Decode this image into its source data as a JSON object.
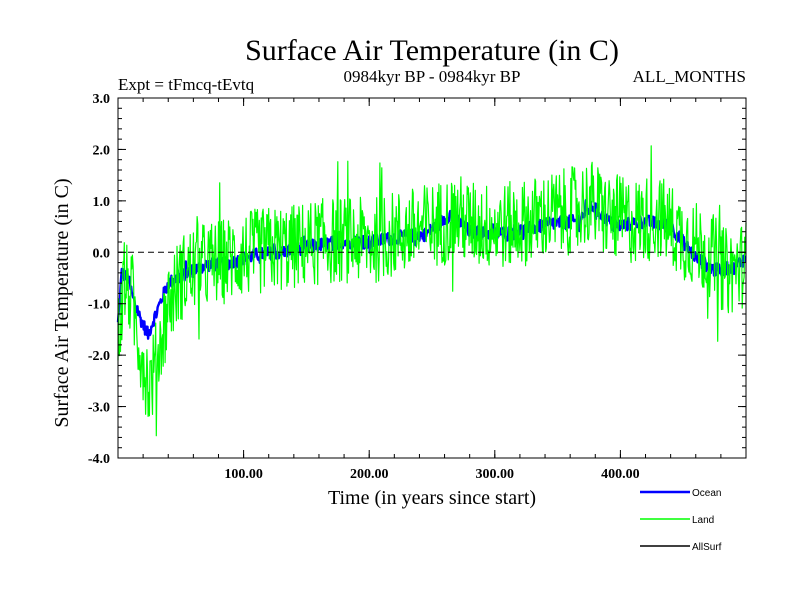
{
  "chart_data": {
    "type": "line",
    "title": "Surface Air Temperature (in C)",
    "subtitle_left": "Expt = tFmcq-tEvtq",
    "subtitle_center": "0984kyr BP - 0984kyr BP",
    "subtitle_right": "ALL_MONTHS",
    "xlabel": "Time (in years since start)",
    "ylabel": "Surface Air Temperature (in C)",
    "xlim": [
      0,
      500
    ],
    "ylim": [
      -4.0,
      3.0
    ],
    "x_ticks": [
      {
        "value": 100,
        "label": "100.00"
      },
      {
        "value": 200,
        "label": "200.00"
      },
      {
        "value": 300,
        "label": "300.00"
      },
      {
        "value": 400,
        "label": "400.00"
      }
    ],
    "y_ticks": [
      {
        "value": 3.0,
        "label": "3.0"
      },
      {
        "value": 2.0,
        "label": "2.0"
      },
      {
        "value": 1.0,
        "label": "1.0"
      },
      {
        "value": 0.0,
        "label": "0.0"
      },
      {
        "value": -1.0,
        "label": "-1.0"
      },
      {
        "value": -2.0,
        "label": "-2.0"
      },
      {
        "value": -3.0,
        "label": "-3.0"
      },
      {
        "value": -4.0,
        "label": "-4.0"
      }
    ],
    "reference_line": {
      "y": 0.0,
      "style": "dashed"
    },
    "legend_placement": "below-right",
    "series": [
      {
        "name": "Land",
        "color": "#00ff00",
        "noise_amplitude": 0.85,
        "trend": {
          "x": [
            0,
            5,
            10,
            15,
            20,
            25,
            30,
            40,
            50,
            60,
            80,
            100,
            120,
            140,
            160,
            180,
            200,
            220,
            240,
            260,
            270,
            280,
            300,
            320,
            340,
            360,
            375,
            390,
            410,
            430,
            450,
            470,
            485,
            500
          ],
          "y": [
            -1.7,
            -0.6,
            -0.8,
            -1.5,
            -2.1,
            -2.6,
            -2.2,
            -1.0,
            -0.5,
            -0.3,
            -0.2,
            -0.05,
            0.05,
            0.1,
            0.2,
            0.25,
            0.2,
            0.35,
            0.45,
            0.6,
            0.7,
            0.55,
            0.5,
            0.55,
            0.7,
            0.8,
            1.0,
            0.7,
            0.6,
            0.7,
            0.3,
            0.0,
            -0.4,
            -0.2
          ]
        }
      },
      {
        "name": "Ocean",
        "color": "#0000ff",
        "noise_amplitude": 0.13,
        "trend": {
          "x": [
            0,
            3,
            8,
            12,
            18,
            24,
            30,
            40,
            55,
            70,
            90,
            110,
            130,
            150,
            175,
            200,
            225,
            245,
            265,
            280,
            300,
            325,
            345,
            365,
            378,
            395,
            420,
            440,
            460,
            475,
            490,
            500
          ],
          "y": [
            -1.4,
            -0.4,
            -0.5,
            -0.9,
            -1.3,
            -1.6,
            -1.2,
            -0.6,
            -0.4,
            -0.25,
            -0.2,
            -0.05,
            0.0,
            0.1,
            0.2,
            0.2,
            0.3,
            0.35,
            0.75,
            0.4,
            0.35,
            0.45,
            0.55,
            0.6,
            0.9,
            0.5,
            0.6,
            0.5,
            -0.1,
            -0.35,
            -0.3,
            -0.1
          ]
        }
      },
      {
        "name": "AllSurf",
        "color": "#000000",
        "drawn": false
      }
    ]
  }
}
